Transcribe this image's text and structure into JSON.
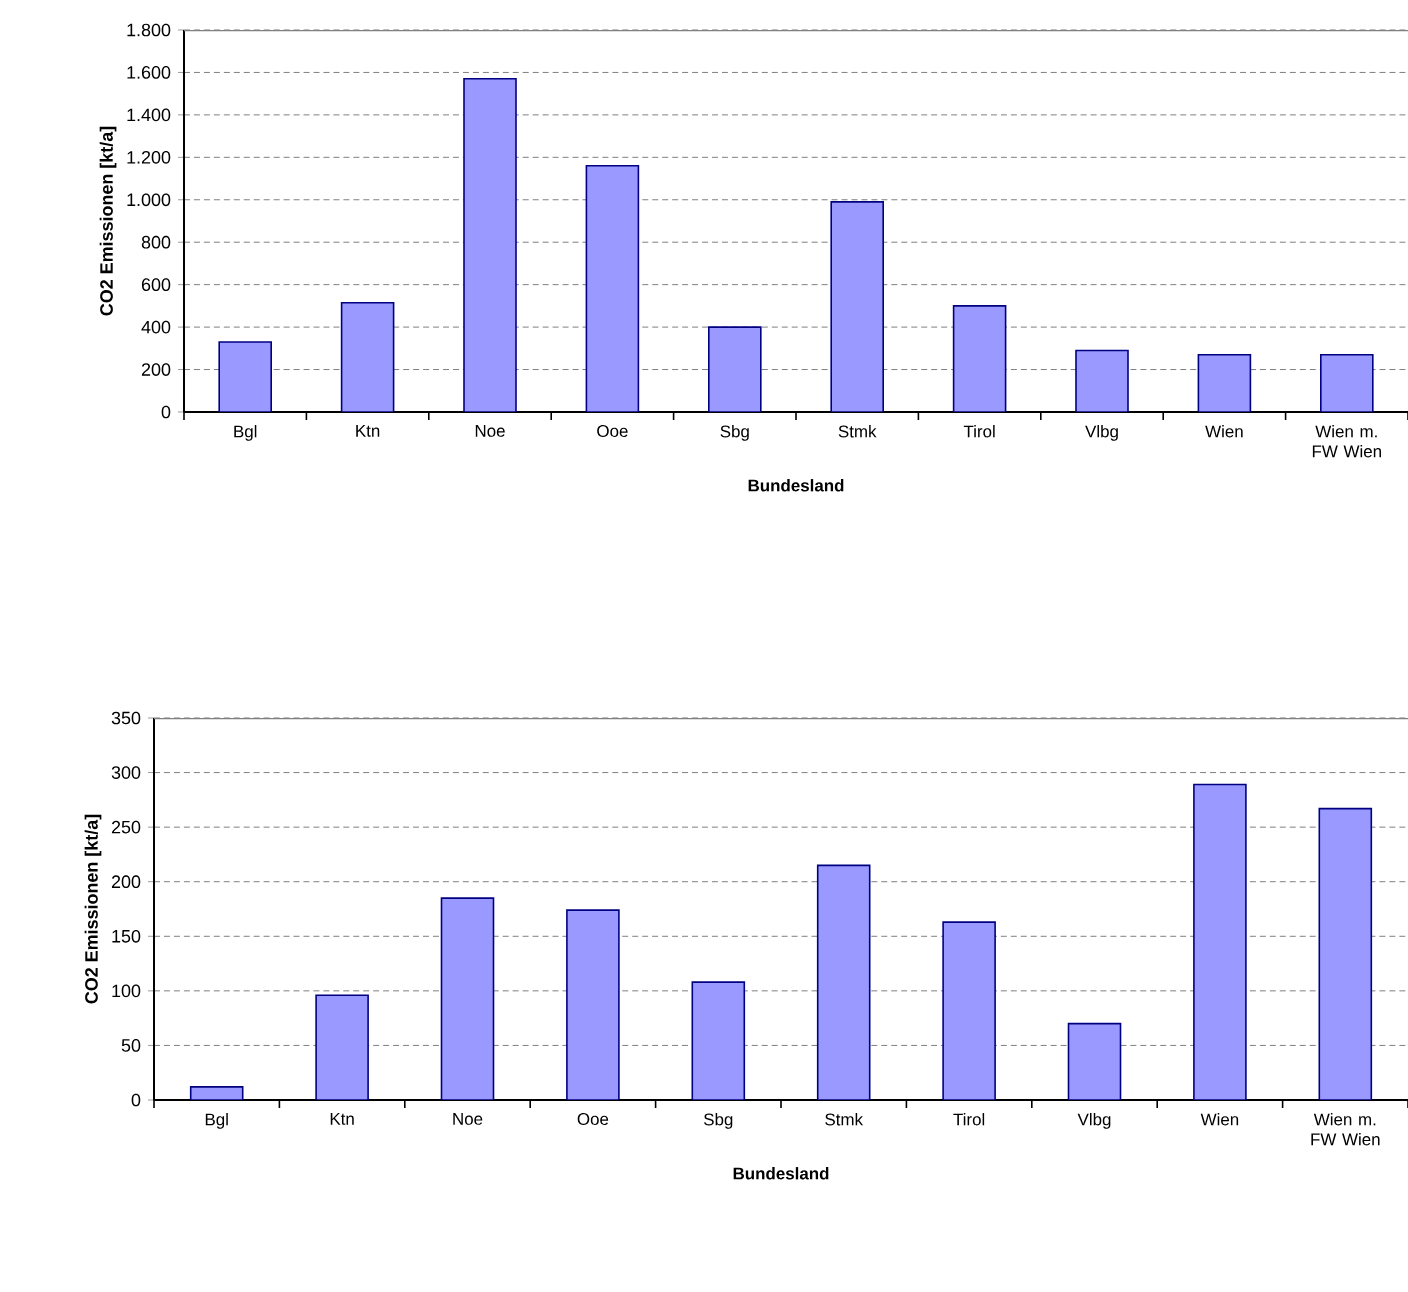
{
  "chart_data": [
    {
      "type": "bar",
      "categories": [
        "Bgl",
        "Ktn",
        "Noe",
        "Ooe",
        "Sbg",
        "Stmk",
        "Tirol",
        "Vlbg",
        "Wien",
        "Wien m. FW Wien"
      ],
      "values": [
        330,
        515,
        1570,
        1160,
        400,
        990,
        500,
        290,
        270,
        270
      ],
      "color": "#9999ff",
      "ylim": [
        0,
        1800
      ],
      "yticks": [
        0,
        200,
        400,
        600,
        800,
        {
          "value": 1000,
          "label": "1.000"
        },
        {
          "value": 1200,
          "label": "1.200"
        },
        {
          "value": 1400,
          "label": "1.400"
        },
        {
          "value": 1600,
          "label": "1.600"
        },
        {
          "value": 1800,
          "label": "1.800"
        }
      ],
      "grid": "y",
      "xlabel": "Bundesland",
      "ylabel": "CO2 Emissionen [kt/a]"
    },
    {
      "type": "bar",
      "categories": [
        "Bgl",
        "Ktn",
        "Noe",
        "Ooe",
        "Sbg",
        "Stmk",
        "Tirol",
        "Vlbg",
        "Wien",
        "Wien m. FW Wien"
      ],
      "values": [
        12,
        96,
        185,
        174,
        108,
        215,
        163,
        70,
        289,
        267
      ],
      "color": "#9999ff",
      "ylim": [
        0,
        350
      ],
      "yticks": [
        0,
        50,
        100,
        150,
        200,
        250,
        300,
        350
      ],
      "grid": "y",
      "xlabel": "Bundesland",
      "ylabel": "CO2 Emissionen [kt/a]"
    }
  ]
}
